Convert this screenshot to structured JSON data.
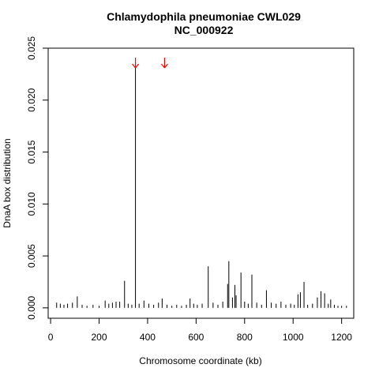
{
  "chart_data": {
    "type": "bar",
    "title_line1": "Chlamydophila pneumoniae CWL029",
    "title_line2": "NC_000922",
    "xlabel": "Chromosome coordinate (kb)",
    "ylabel": "DnaA box distribution",
    "xlim": [
      -10,
      1250
    ],
    "ylim": [
      -0.001,
      0.025
    ],
    "xticks": [
      0,
      200,
      400,
      600,
      800,
      1000,
      1200
    ],
    "yticks": [
      0.0,
      0.005,
      0.01,
      0.015,
      0.02,
      0.025
    ],
    "xtick_labels": [
      "0",
      "200",
      "400",
      "600",
      "800",
      "1000",
      "1200"
    ],
    "ytick_labels": [
      "0.000",
      "0.005",
      "0.010",
      "0.015",
      "0.020",
      "0.025"
    ],
    "grid": false,
    "arrow_color": "#ff0000",
    "bar_color": "#000000",
    "arrows_at_kb": [
      350,
      470
    ],
    "bars": [
      {
        "x": 25,
        "y": 0.0005
      },
      {
        "x": 40,
        "y": 0.0004
      },
      {
        "x": 55,
        "y": 0.0003
      },
      {
        "x": 70,
        "y": 0.0004
      },
      {
        "x": 90,
        "y": 0.0005
      },
      {
        "x": 110,
        "y": 0.0011
      },
      {
        "x": 130,
        "y": 0.0003
      },
      {
        "x": 150,
        "y": 0.0002
      },
      {
        "x": 175,
        "y": 0.0003
      },
      {
        "x": 200,
        "y": 0.0002
      },
      {
        "x": 225,
        "y": 0.0007
      },
      {
        "x": 240,
        "y": 0.0004
      },
      {
        "x": 255,
        "y": 0.0005
      },
      {
        "x": 270,
        "y": 0.0006
      },
      {
        "x": 285,
        "y": 0.0006
      },
      {
        "x": 305,
        "y": 0.0026
      },
      {
        "x": 320,
        "y": 0.0004
      },
      {
        "x": 335,
        "y": 0.0003
      },
      {
        "x": 350,
        "y": 0.0235
      },
      {
        "x": 365,
        "y": 0.0004
      },
      {
        "x": 385,
        "y": 0.0007
      },
      {
        "x": 405,
        "y": 0.0004
      },
      {
        "x": 425,
        "y": 0.0003
      },
      {
        "x": 445,
        "y": 0.0005
      },
      {
        "x": 460,
        "y": 0.0009
      },
      {
        "x": 480,
        "y": 0.0003
      },
      {
        "x": 500,
        "y": 0.0002
      },
      {
        "x": 520,
        "y": 0.0003
      },
      {
        "x": 540,
        "y": 0.0002
      },
      {
        "x": 560,
        "y": 0.0003
      },
      {
        "x": 575,
        "y": 0.0009
      },
      {
        "x": 590,
        "y": 0.0004
      },
      {
        "x": 605,
        "y": 0.0003
      },
      {
        "x": 625,
        "y": 0.0004
      },
      {
        "x": 650,
        "y": 0.004
      },
      {
        "x": 670,
        "y": 0.0005
      },
      {
        "x": 690,
        "y": 0.0003
      },
      {
        "x": 710,
        "y": 0.0006
      },
      {
        "x": 730,
        "y": 0.0023
      },
      {
        "x": 735,
        "y": 0.0045
      },
      {
        "x": 750,
        "y": 0.001
      },
      {
        "x": 760,
        "y": 0.0022
      },
      {
        "x": 765,
        "y": 0.0012
      },
      {
        "x": 785,
        "y": 0.0034
      },
      {
        "x": 800,
        "y": 0.0006
      },
      {
        "x": 815,
        "y": 0.0004
      },
      {
        "x": 830,
        "y": 0.0032
      },
      {
        "x": 850,
        "y": 0.0005
      },
      {
        "x": 870,
        "y": 0.0003
      },
      {
        "x": 890,
        "y": 0.0017
      },
      {
        "x": 910,
        "y": 0.0005
      },
      {
        "x": 930,
        "y": 0.0004
      },
      {
        "x": 950,
        "y": 0.0006
      },
      {
        "x": 970,
        "y": 0.0003
      },
      {
        "x": 990,
        "y": 0.0004
      },
      {
        "x": 1005,
        "y": 0.0003
      },
      {
        "x": 1020,
        "y": 0.0013
      },
      {
        "x": 1030,
        "y": 0.0015
      },
      {
        "x": 1045,
        "y": 0.0025
      },
      {
        "x": 1060,
        "y": 0.0003
      },
      {
        "x": 1080,
        "y": 0.0004
      },
      {
        "x": 1100,
        "y": 0.001
      },
      {
        "x": 1115,
        "y": 0.0016
      },
      {
        "x": 1130,
        "y": 0.0014
      },
      {
        "x": 1145,
        "y": 0.0004
      },
      {
        "x": 1155,
        "y": 0.0008
      },
      {
        "x": 1170,
        "y": 0.0003
      },
      {
        "x": 1185,
        "y": 0.0002
      },
      {
        "x": 1200,
        "y": 0.0002
      },
      {
        "x": 1220,
        "y": 0.0002
      }
    ]
  }
}
